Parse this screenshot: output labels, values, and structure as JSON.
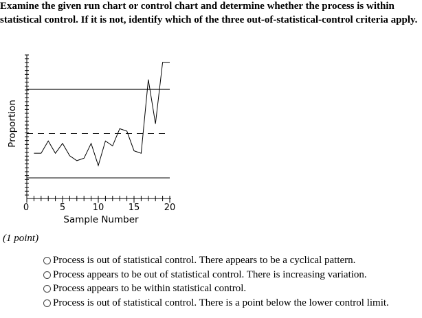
{
  "question": {
    "text": "Examine the given run chart or control chart and determine whether the process is within statistical control. If it is not, identify which of the three out-of-statistical-control criteria apply."
  },
  "points_label": "(1 point)",
  "chart_data": {
    "type": "line",
    "xlabel": "Sample Number",
    "ylabel": "Proportion",
    "x_ticks": [
      "0",
      "5",
      "10",
      "15",
      "20"
    ],
    "xlim": [
      0,
      20
    ],
    "center_line_style": "dashed",
    "control_limit_style": "solid",
    "series": [
      {
        "x": [
          1,
          2,
          3,
          4,
          5,
          6,
          7,
          8,
          9,
          10,
          11,
          12,
          13,
          14,
          15,
          16,
          17,
          18,
          19,
          20
        ],
        "values": [
          0.47,
          0.47,
          0.52,
          0.47,
          0.51,
          0.46,
          0.44,
          0.45,
          0.51,
          0.42,
          0.52,
          0.5,
          0.57,
          0.56,
          0.48,
          0.47,
          0.77,
          0.59,
          0.84,
          0.84
        ]
      }
    ],
    "reference_lines": {
      "upper_control_limit": 0.73,
      "center_line": 0.55,
      "lower_control_limit": 0.37
    },
    "ylim": [
      0.3,
      0.87
    ],
    "grid": false
  },
  "choices": [
    {
      "label": "Process is out of statistical control. There appears to be a cyclical pattern.",
      "selected": false
    },
    {
      "label": "Process appears to be out of statistical control. There is increasing variation.",
      "selected": false
    },
    {
      "label": "Process appears to be within statistical control.",
      "selected": false
    },
    {
      "label": "Process is out of statistical control. There is a point below the lower control limit.",
      "selected": false
    }
  ]
}
